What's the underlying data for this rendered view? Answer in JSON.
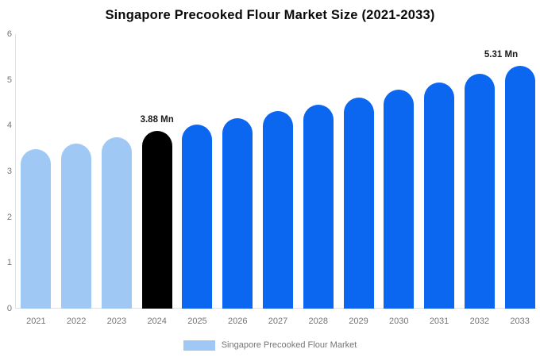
{
  "chart_data": {
    "type": "bar",
    "title": "Singapore Precooked Flour Market Size (2021-2033)",
    "categories": [
      "2021",
      "2022",
      "2023",
      "2024",
      "2025",
      "2026",
      "2027",
      "2028",
      "2029",
      "2030",
      "2031",
      "2032",
      "2033"
    ],
    "values": [
      3.49,
      3.61,
      3.74,
      3.88,
      4.02,
      4.16,
      4.31,
      4.46,
      4.62,
      4.78,
      4.95,
      5.13,
      5.31
    ],
    "unit": "Mn",
    "bar_colors": [
      "#A0C8F5",
      "#A0C8F5",
      "#A0C8F5",
      "#000000",
      "#0B67F0",
      "#0B67F0",
      "#0B67F0",
      "#0B67F0",
      "#0B67F0",
      "#0B67F0",
      "#0B67F0",
      "#0B67F0",
      "#0B67F0"
    ],
    "annotations": [
      {
        "index": 3,
        "label": "3.88 Mn"
      },
      {
        "index": 12,
        "label": "5.31 Mn"
      }
    ],
    "xlabel": "",
    "ylabel": "",
    "ylim": [
      0,
      6
    ],
    "grid": false,
    "legend_position": "bottom",
    "legend_label": "Singapore Precooked Flour Market"
  },
  "y_axis": {
    "ticks": [
      0,
      1,
      2,
      3,
      4,
      5,
      6
    ]
  },
  "colors": {
    "history_bar": "#A0C8F5",
    "current_bar": "#000000",
    "forecast_bar": "#0B67F0",
    "axis_line": "#e0e0e0",
    "tick_text": "#757575",
    "annotation_text": "#1a1a1a",
    "legend_swatch": "#A0C8F5"
  }
}
